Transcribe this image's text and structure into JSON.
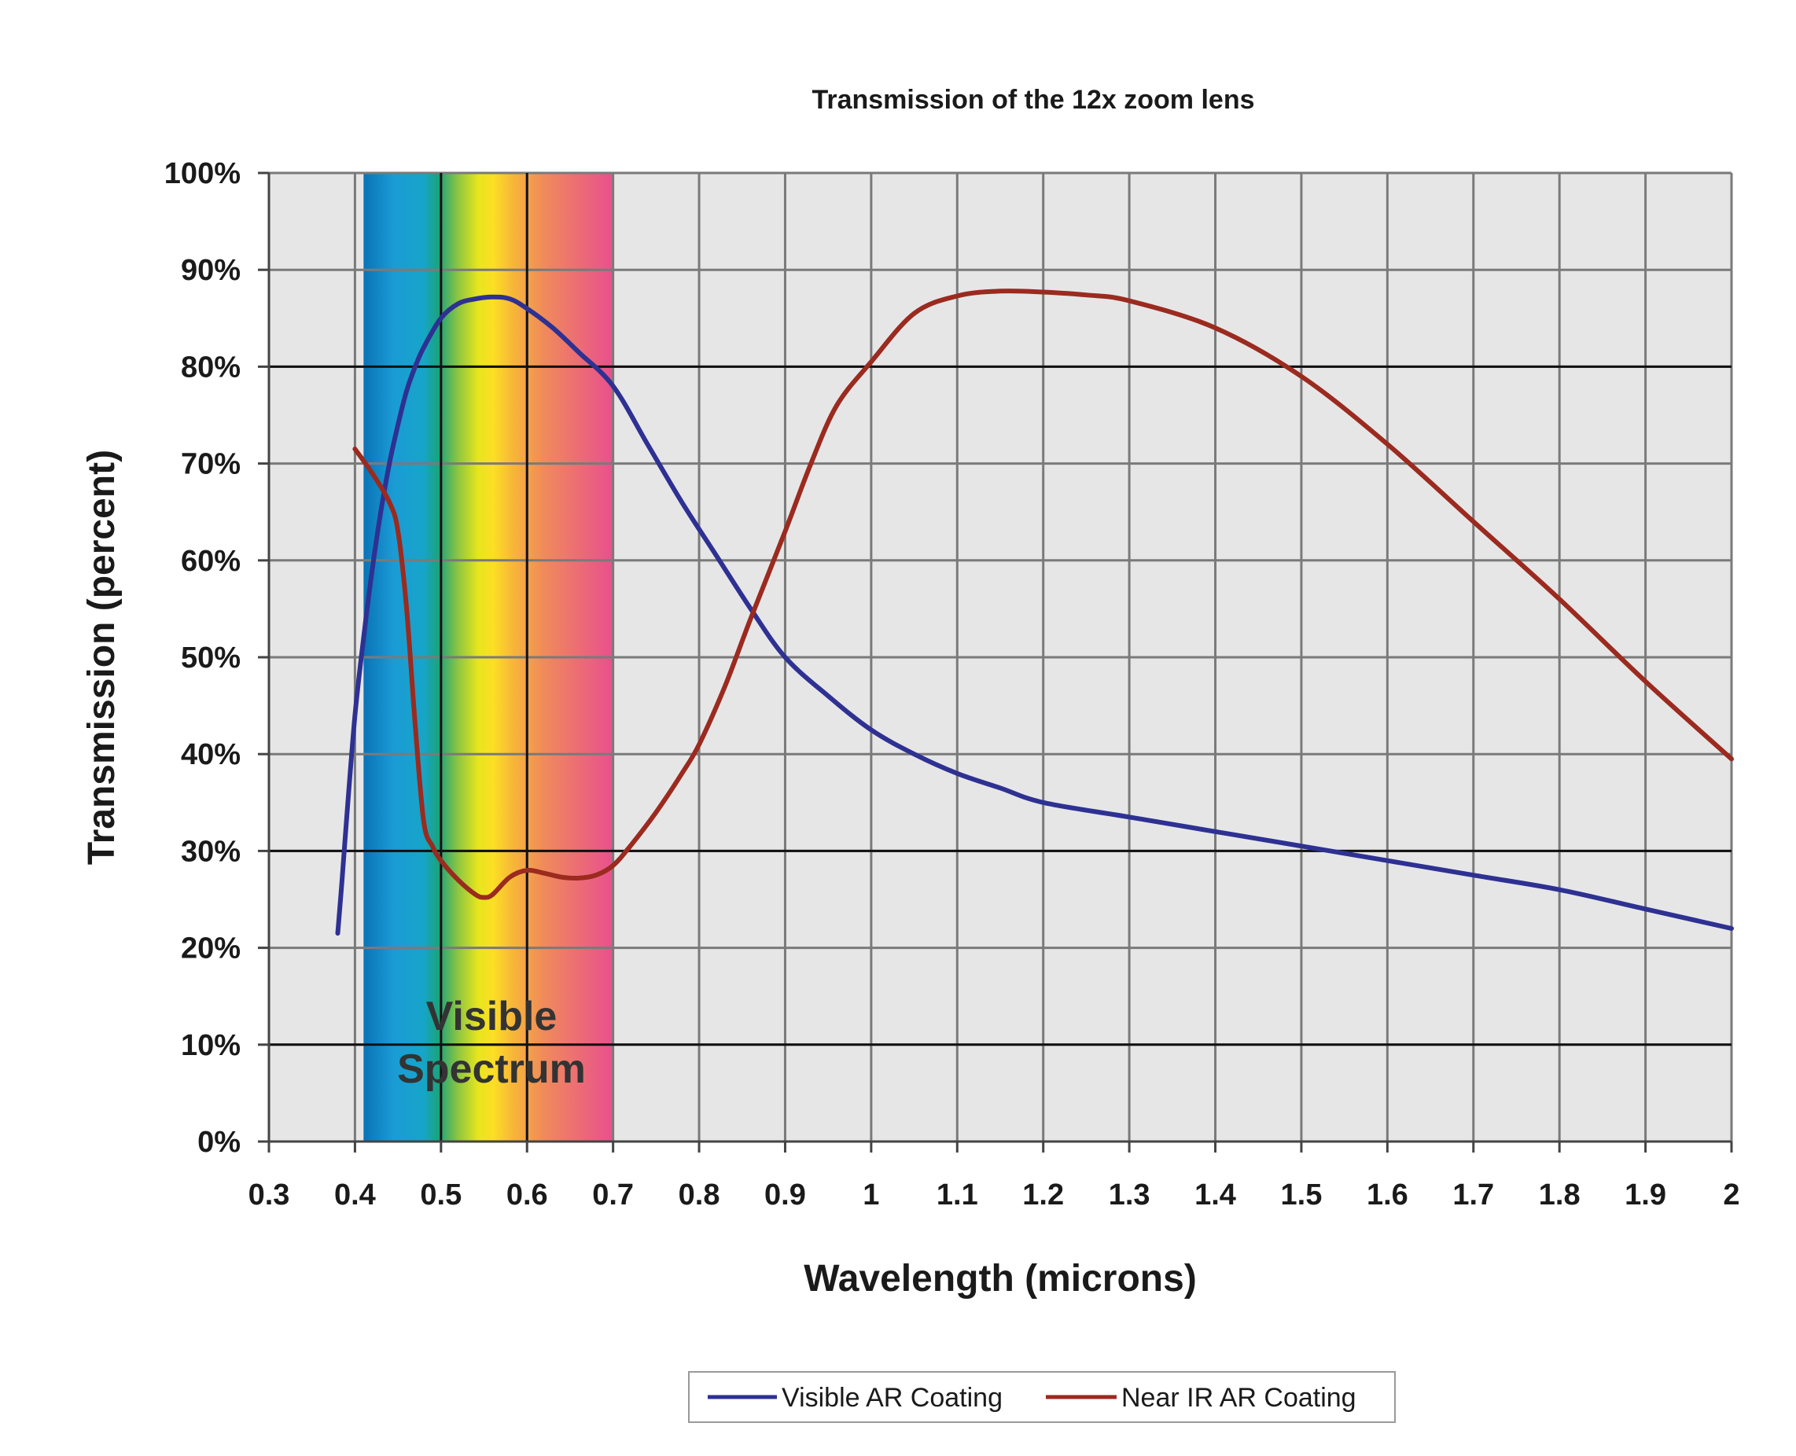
{
  "chart_data": {
    "type": "line",
    "title": "Transmission of the 12x zoom lens",
    "xlabel": "Wavelength (microns)",
    "ylabel": "Transmission (percent)",
    "xlim": [
      0.3,
      2.0
    ],
    "ylim": [
      0,
      100
    ],
    "x_ticks": [
      "0.3",
      "0.4",
      "0.5",
      "0.6",
      "0.7",
      "0.8",
      "0.9",
      "1",
      "1.1",
      "1.2",
      "1.3",
      "1.4",
      "1.5",
      "1.6",
      "1.7",
      "1.8",
      "1.9",
      "2"
    ],
    "x_tick_values": [
      0.3,
      0.4,
      0.5,
      0.6,
      0.7,
      0.8,
      0.9,
      1.0,
      1.1,
      1.2,
      1.3,
      1.4,
      1.5,
      1.6,
      1.7,
      1.8,
      1.9,
      2.0
    ],
    "y_ticks": [
      "0%",
      "10%",
      "20%",
      "30%",
      "40%",
      "50%",
      "60%",
      "70%",
      "80%",
      "90%",
      "100%"
    ],
    "y_tick_values": [
      0,
      10,
      20,
      30,
      40,
      50,
      60,
      70,
      80,
      90,
      100
    ],
    "grid": true,
    "legend_position": "bottom",
    "band": {
      "label_line1": "Visible",
      "label_line2": "Spectrum",
      "x_start": 0.41,
      "x_end": 0.7
    },
    "series": [
      {
        "name": "Visible AR Coating",
        "color": "#2e3192",
        "x": [
          0.38,
          0.385,
          0.39,
          0.4,
          0.41,
          0.42,
          0.43,
          0.44,
          0.45,
          0.46,
          0.47,
          0.48,
          0.5,
          0.52,
          0.54,
          0.56,
          0.58,
          0.6,
          0.63,
          0.66,
          0.7,
          0.74,
          0.78,
          0.82,
          0.86,
          0.9,
          0.95,
          1.0,
          1.05,
          1.1,
          1.15,
          1.2,
          1.3,
          1.4,
          1.5,
          1.6,
          1.7,
          1.8,
          1.9,
          2.0
        ],
        "values": [
          21.5,
          27,
          33,
          44,
          52,
          59,
          65,
          70,
          74,
          77.5,
          80,
          82,
          85,
          86.5,
          87,
          87.2,
          87,
          86,
          84,
          81.5,
          78,
          72,
          66,
          60.5,
          55,
          50,
          46,
          42.5,
          40,
          38,
          36.5,
          35,
          33.5,
          32,
          30.5,
          29,
          27.5,
          26,
          24,
          22
        ]
      },
      {
        "name": "Near IR AR Coating",
        "color": "#9b2a1f",
        "x": [
          0.4,
          0.42,
          0.44,
          0.45,
          0.46,
          0.47,
          0.48,
          0.49,
          0.5,
          0.52,
          0.54,
          0.55,
          0.56,
          0.58,
          0.6,
          0.62,
          0.64,
          0.66,
          0.68,
          0.7,
          0.72,
          0.75,
          0.78,
          0.8,
          0.83,
          0.86,
          0.9,
          0.93,
          0.96,
          1.0,
          1.05,
          1.1,
          1.15,
          1.2,
          1.25,
          1.3,
          1.4,
          1.5,
          1.6,
          1.7,
          1.8,
          1.9,
          2.0
        ],
        "values": [
          71.5,
          69,
          66,
          63,
          55,
          43,
          33,
          30.5,
          29,
          27,
          25.5,
          25.2,
          25.5,
          27.3,
          28,
          27.7,
          27.3,
          27.2,
          27.5,
          28.5,
          30.5,
          34,
          38,
          41,
          47,
          54,
          63,
          70,
          76,
          80.5,
          85.5,
          87.3,
          87.8,
          87.7,
          87.4,
          86.8,
          84,
          79,
          72,
          64,
          56,
          47.5,
          39.5
        ]
      }
    ]
  }
}
